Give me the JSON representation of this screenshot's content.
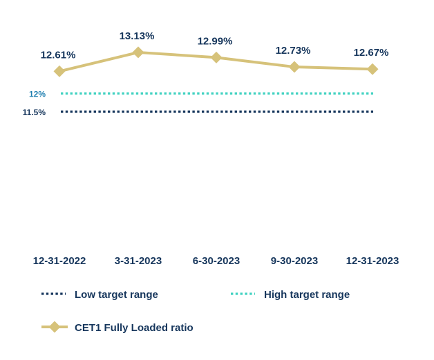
{
  "chart_data": {
    "type": "line",
    "title": "",
    "xlabel": "",
    "ylabel": "",
    "categories": [
      "12-31-2022",
      "3-31-2023",
      "6-30-2023",
      "9-30-2023",
      "12-31-2023"
    ],
    "series": [
      {
        "name": "CET1 Fully Loaded ratio",
        "values": [
          12.61,
          13.13,
          12.99,
          12.73,
          12.67
        ],
        "labels": [
          "12.61%",
          "13.13%",
          "12.99%",
          "12.73%",
          "12.67%"
        ],
        "color": "#d6c27a",
        "marker": "diamond"
      }
    ],
    "reference_lines": [
      {
        "name": "High target range",
        "value": 12.0,
        "label": "12%",
        "color": "#3ed1c0",
        "style": "dotted",
        "label_color": "#1f7fb0"
      },
      {
        "name": "Low target range",
        "value": 11.5,
        "label": "11.5%",
        "color": "#16365c",
        "style": "dotted",
        "label_color": "#16365c"
      }
    ],
    "legend": {
      "placement": "bottom",
      "items": [
        {
          "key": "low",
          "label": "Low target range",
          "color": "#16365c",
          "style": "dotted"
        },
        {
          "key": "high",
          "label": "High target range",
          "color": "#3ed1c0",
          "style": "dotted"
        },
        {
          "key": "cet1",
          "label": "CET1 Fully Loaded ratio",
          "color": "#d6c27a",
          "style": "line-diamond"
        }
      ]
    }
  }
}
